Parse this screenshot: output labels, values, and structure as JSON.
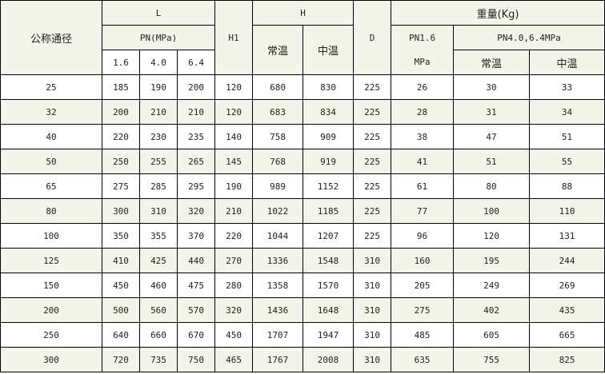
{
  "header": {
    "nominal_diameter": "公称通径",
    "L": "L",
    "pn_mpa": "PN(MPa)",
    "pn_values": [
      "1.6",
      "4.0",
      "6.4"
    ],
    "H1": "H1",
    "H": "H",
    "H_normal": "常温",
    "H_medium": "中温",
    "D": "D",
    "weight": "重量(Kg)",
    "weight_pn16": "PN1.6",
    "weight_pn16_unit": "MPa",
    "weight_pn40_64": "PN4.0,6.4MPa",
    "weight_normal": "常温",
    "weight_medium": "中温"
  },
  "colors": {
    "header_bg": "#f3f5eb",
    "alt_row_bg": "#f3f5eb",
    "border": "#000000"
  },
  "rows": [
    [
      "25",
      "185",
      "190",
      "200",
      "120",
      "680",
      "830",
      "225",
      "26",
      "30",
      "33"
    ],
    [
      "32",
      "200",
      "210",
      "210",
      "120",
      "683",
      "834",
      "225",
      "28",
      "31",
      "34"
    ],
    [
      "40",
      "220",
      "230",
      "235",
      "140",
      "758",
      "909",
      "225",
      "38",
      "47",
      "51"
    ],
    [
      "50",
      "250",
      "255",
      "265",
      "145",
      "768",
      "919",
      "225",
      "41",
      "51",
      "55"
    ],
    [
      "65",
      "275",
      "285",
      "295",
      "190",
      "989",
      "1152",
      "225",
      "61",
      "80",
      "88"
    ],
    [
      "80",
      "300",
      "310",
      "320",
      "210",
      "1022",
      "1185",
      "225",
      "77",
      "100",
      "110"
    ],
    [
      "100",
      "350",
      "355",
      "370",
      "220",
      "1044",
      "1207",
      "225",
      "96",
      "120",
      "131"
    ],
    [
      "125",
      "410",
      "425",
      "440",
      "270",
      "1336",
      "1548",
      "310",
      "160",
      "195",
      "244"
    ],
    [
      "150",
      "450",
      "460",
      "475",
      "280",
      "1358",
      "1570",
      "310",
      "205",
      "249",
      "269"
    ],
    [
      "200",
      "500",
      "560",
      "570",
      "320",
      "1436",
      "1648",
      "310",
      "275",
      "402",
      "435"
    ],
    [
      "250",
      "640",
      "660",
      "670",
      "450",
      "1707",
      "1947",
      "310",
      "485",
      "605",
      "665"
    ],
    [
      "300",
      "720",
      "735",
      "750",
      "465",
      "1767",
      "2008",
      "310",
      "635",
      "755",
      "825"
    ]
  ]
}
